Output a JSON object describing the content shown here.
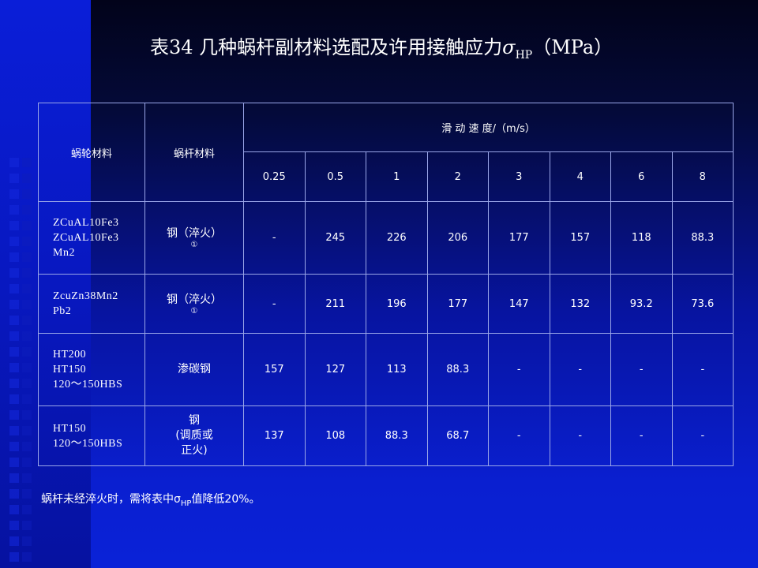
{
  "title": {
    "prefix": "表34  几种蜗杆副材料选配及许用接触应力",
    "sigma": "σ",
    "sub": "HP",
    "unit": "（MPa）"
  },
  "table": {
    "col_wheel": "蜗轮材料",
    "col_worm": "蜗杆材料",
    "col_speed": "滑 动 速 度/（m/s）",
    "speeds": [
      "0.25",
      "0.5",
      "1",
      "2",
      "3",
      "4",
      "6",
      "8"
    ],
    "rows": [
      {
        "wheel": [
          "ZCuAL10Fe3",
          "ZCuAL10Fe3",
          "Mn2"
        ],
        "worm": "钢（淬火）",
        "mark": "①",
        "values": [
          "-",
          "245",
          "226",
          "206",
          "177",
          "157",
          "118",
          "88.3"
        ]
      },
      {
        "wheel": [
          "ZcuZn38Mn2",
          "Pb2"
        ],
        "worm": "钢（淬火）",
        "mark": "①",
        "values": [
          "-",
          "211",
          "196",
          "177",
          "147",
          "132",
          "93.2",
          "73.6"
        ]
      },
      {
        "wheel": [
          "HT200",
          "HT150",
          "120～150HBS"
        ],
        "worm": "渗碳钢",
        "mark": "",
        "values": [
          "157",
          "127",
          "113",
          "88.3",
          "-",
          "-",
          "-",
          "-"
        ]
      },
      {
        "wheel": [
          "HT150",
          "120～150HBS"
        ],
        "worm": "钢\n(调质或\n正火)",
        "mark": "",
        "values": [
          "137",
          "108",
          "88.3",
          "68.7",
          "-",
          "-",
          "-",
          "-"
        ]
      }
    ]
  },
  "note": {
    "prefix": "蜗杆未经淬火时，需将表中",
    "sigma": "σ",
    "sub": "HP",
    "suffix": "值降低20%。"
  }
}
